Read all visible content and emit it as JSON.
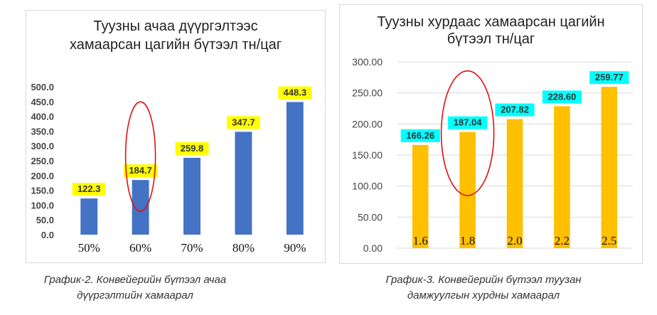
{
  "chart_data": [
    {
      "type": "bar",
      "title_line1": "Туузны ачаа дүүргэлтээс",
      "title_line2": "хамаарсан цагийн бүтээл тн/цаг",
      "categories": [
        "50%",
        "60%",
        "70%",
        "80%",
        "90%"
      ],
      "values": [
        122.3,
        184.7,
        259.8,
        347.7,
        448.3
      ],
      "value_labels": [
        "122.3",
        "184.7",
        "259.8",
        "347.7",
        "448.3"
      ],
      "y_ticks": [
        "0.0",
        "50.0",
        "100.0",
        "150.0",
        "200.0",
        "250.0",
        "300.0",
        "350.0",
        "400.0",
        "450.0",
        "500.0"
      ],
      "ylim": [
        0,
        500
      ],
      "grid": false,
      "bar_color": "#4472c4",
      "label_highlight": "#ffff00",
      "highlight_index": 1,
      "ellipse_color": "#e01010"
    },
    {
      "type": "bar",
      "title_line1": "Туузны хурдаас хамаарсан цагийн",
      "title_line2": "бүтээл тн/цаг",
      "categories": [
        "1.6",
        "1.8",
        "2.0",
        "2.2",
        "2.5"
      ],
      "values": [
        166.26,
        187.04,
        207.82,
        228.6,
        259.77
      ],
      "value_labels": [
        "166.26",
        "187.04",
        "207.82",
        "228.60",
        "259.77"
      ],
      "y_ticks": [
        "0.00",
        "50.00",
        "100.00",
        "150.00",
        "200.00",
        "250.00",
        "300.00"
      ],
      "ylim": [
        0,
        300
      ],
      "grid": true,
      "bar_color": "#ffc000",
      "label_highlight": "#00ffff",
      "highlight_index": 1,
      "ellipse_color": "#e01010"
    }
  ],
  "captions": {
    "chart1_line1": "График-2. Конвейерийн бүтээл ачаа",
    "chart1_line2": "дүүргэлтийн хамаарал",
    "chart2_line1": "График-3. Конвейерийн бүтээл туузан",
    "chart2_line2": "дамжуулгын хурдны хамаарал"
  }
}
